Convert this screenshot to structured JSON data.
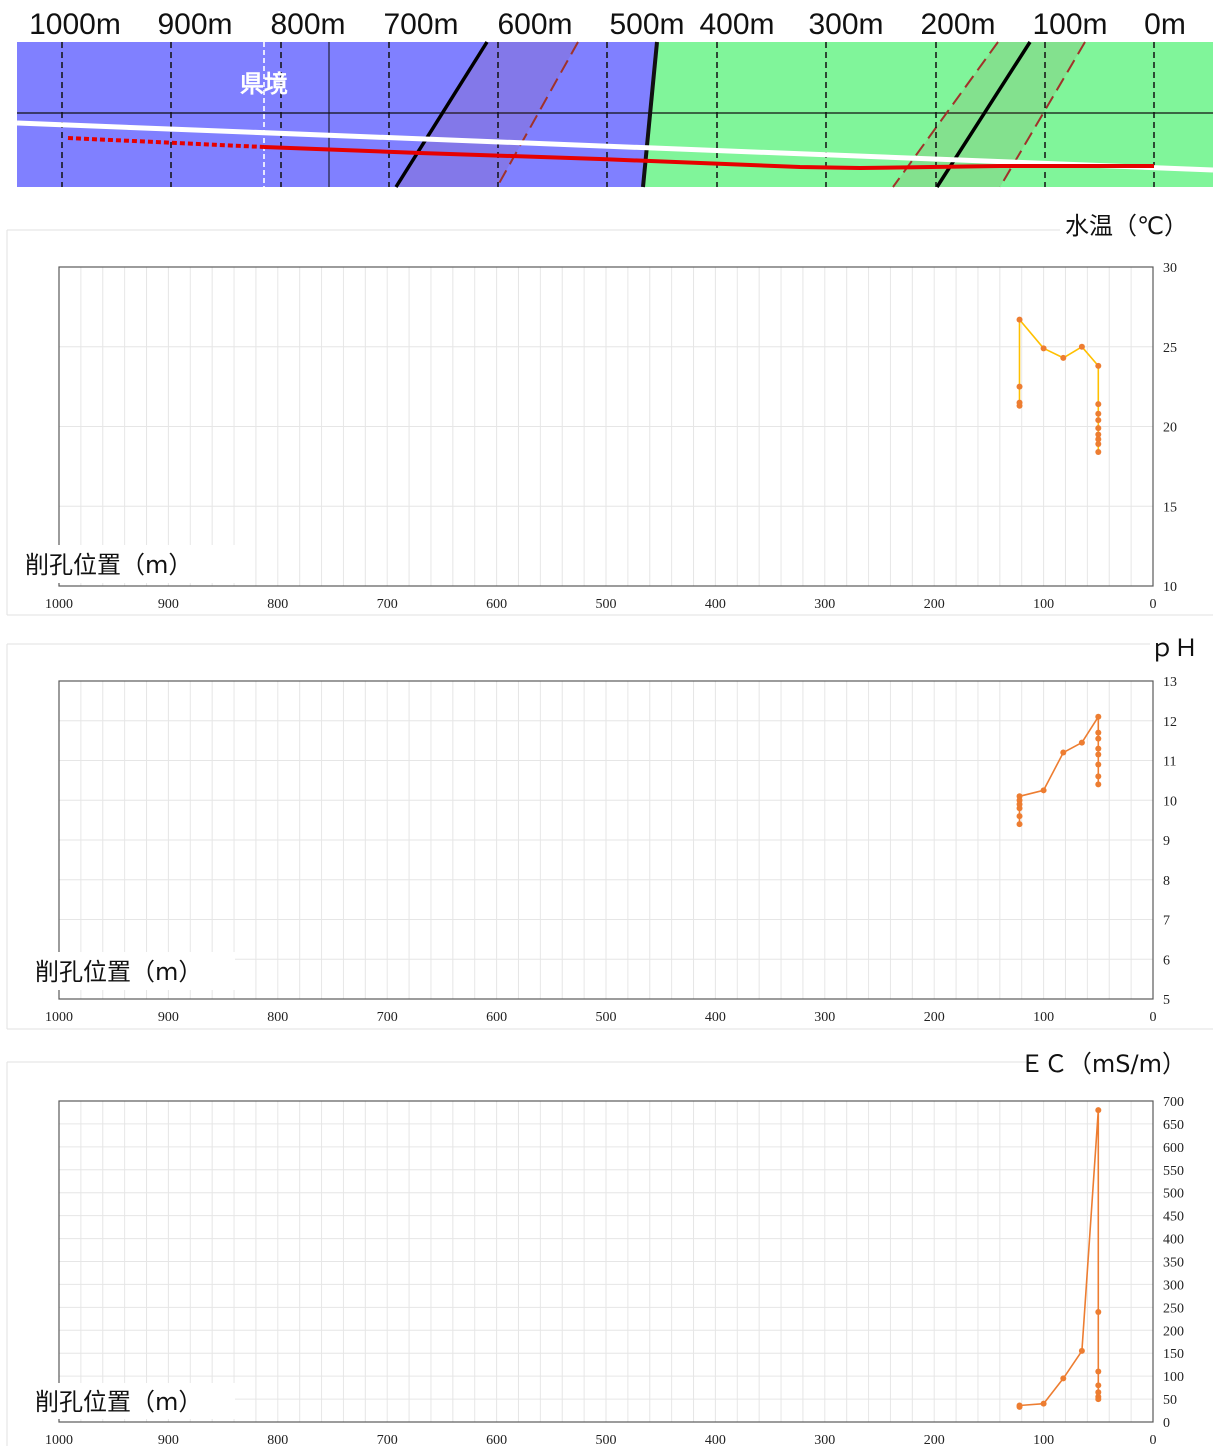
{
  "profile": {
    "distance_labels": [
      "1000m",
      "900m",
      "800m",
      "700m",
      "600m",
      "500m",
      "400m",
      "300m",
      "200m",
      "100m",
      "0m"
    ],
    "boundary_label": "県境",
    "colors": {
      "left_zone": "#8080FF",
      "right_zone": "#80F59A",
      "tunnel_line": "#E60000",
      "ground_line": "#FFFFFF",
      "fault_line": "#000000",
      "fault_zone": "#A0322A"
    }
  },
  "panels": [
    {
      "id": "water-temp",
      "y_title": "水温（℃）",
      "x_title": "削孔位置（m）",
      "line_color": "#FFC000",
      "marker_color": "#ED7D31"
    },
    {
      "id": "ph",
      "y_title": "ｐＨ",
      "x_title": "削孔位置（m）",
      "line_color": "#ED7D31",
      "marker_color": "#ED7D31"
    },
    {
      "id": "ec",
      "y_title": "ＥＣ（mS/m）",
      "x_title": "削孔位置（m）",
      "line_color": "#ED7D31",
      "marker_color": "#ED7D31"
    }
  ],
  "chart_data": [
    {
      "type": "line",
      "title": "",
      "ylabel": "水温（℃）",
      "xlabel": "削孔位置（m）",
      "xlim": [
        1000,
        0
      ],
      "ylim": [
        10,
        30
      ],
      "x_ticks": [
        1000,
        900,
        800,
        700,
        600,
        500,
        400,
        300,
        200,
        100,
        0
      ],
      "y_ticks": [
        10,
        15,
        20,
        25,
        30
      ],
      "grid": true,
      "y_axis_side": "right",
      "series": [
        {
          "x": [
            122,
            122,
            122,
            122,
            100,
            82,
            65,
            50,
            50,
            50,
            50,
            50,
            50,
            50,
            50,
            50
          ],
          "y": [
            21.3,
            21.5,
            22.5,
            26.7,
            24.9,
            24.3,
            25.0,
            23.8,
            21.4,
            20.8,
            20.4,
            19.9,
            19.5,
            19.2,
            18.9,
            18.4
          ]
        }
      ]
    },
    {
      "type": "line",
      "title": "",
      "ylabel": "ｐＨ",
      "xlabel": "削孔位置（m）",
      "xlim": [
        1000,
        0
      ],
      "ylim": [
        5,
        13
      ],
      "x_ticks": [
        1000,
        900,
        800,
        700,
        600,
        500,
        400,
        300,
        200,
        100,
        0
      ],
      "y_ticks": [
        5,
        6,
        7,
        8,
        9,
        10,
        11,
        12,
        13
      ],
      "grid": true,
      "y_axis_side": "right",
      "series": [
        {
          "x": [
            122,
            122,
            122,
            122,
            122,
            122,
            100,
            82,
            65,
            50,
            50,
            50,
            50,
            50,
            50,
            50,
            50
          ],
          "y": [
            9.4,
            9.6,
            9.8,
            9.9,
            10.0,
            10.1,
            10.25,
            11.2,
            11.45,
            12.1,
            11.7,
            11.55,
            11.3,
            11.15,
            10.9,
            10.6,
            10.4
          ]
        }
      ]
    },
    {
      "type": "line",
      "title": "",
      "ylabel": "ＥＣ（mS/m）",
      "xlabel": "削孔位置（m）",
      "xlim": [
        1000,
        0
      ],
      "ylim": [
        0,
        700
      ],
      "x_ticks": [
        1000,
        900,
        800,
        700,
        600,
        500,
        400,
        300,
        200,
        100,
        0
      ],
      "y_ticks": [
        0,
        50,
        100,
        150,
        200,
        250,
        300,
        350,
        400,
        450,
        500,
        550,
        600,
        650,
        700
      ],
      "grid": true,
      "y_axis_side": "right",
      "series": [
        {
          "x": [
            122,
            122,
            100,
            82,
            65,
            50,
            50,
            50,
            50,
            50,
            50,
            50
          ],
          "y": [
            33,
            36,
            40,
            95,
            155,
            680,
            240,
            110,
            80,
            65,
            55,
            50
          ]
        }
      ]
    }
  ]
}
